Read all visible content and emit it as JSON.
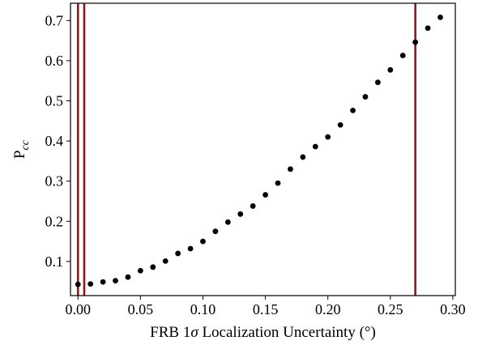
{
  "chart_data": {
    "type": "scatter",
    "xlabel_prefix": "FRB 1",
    "xlabel_symbol": "σ",
    "xlabel_suffix": " Localization Uncertainty (°)",
    "ylabel_main": "P",
    "ylabel_sub": "cc",
    "xlim": [
      -0.006,
      0.302
    ],
    "ylim": [
      0.015,
      0.743
    ],
    "xticks": [
      0.0,
      0.05,
      0.1,
      0.15,
      0.2,
      0.25,
      0.3
    ],
    "xtick_labels": [
      "0.00",
      "0.05",
      "0.10",
      "0.15",
      "0.20",
      "0.25",
      "0.30"
    ],
    "yticks": [
      0.1,
      0.2,
      0.3,
      0.4,
      0.5,
      0.6,
      0.7
    ],
    "ytick_labels": [
      "0.1",
      "0.2",
      "0.3",
      "0.4",
      "0.5",
      "0.6",
      "0.7"
    ],
    "grid": false,
    "marker_color": "#000000",
    "vline_color": "#8b1a1a",
    "vlines": [
      0.0,
      0.005,
      0.27
    ],
    "series": [
      {
        "x": [
          0.0,
          0.01,
          0.02,
          0.03,
          0.04,
          0.05,
          0.06,
          0.07,
          0.08,
          0.09,
          0.1,
          0.11,
          0.12,
          0.13,
          0.14,
          0.15,
          0.16,
          0.17,
          0.18,
          0.19,
          0.2,
          0.21,
          0.22,
          0.23,
          0.24,
          0.25,
          0.26,
          0.27,
          0.28,
          0.29
        ],
        "y": [
          0.043,
          0.044,
          0.049,
          0.052,
          0.061,
          0.077,
          0.086,
          0.101,
          0.12,
          0.132,
          0.15,
          0.175,
          0.198,
          0.218,
          0.238,
          0.266,
          0.295,
          0.33,
          0.36,
          0.386,
          0.41,
          0.44,
          0.476,
          0.51,
          0.546,
          0.577,
          0.613,
          0.646,
          0.681,
          0.708
        ]
      }
    ]
  }
}
